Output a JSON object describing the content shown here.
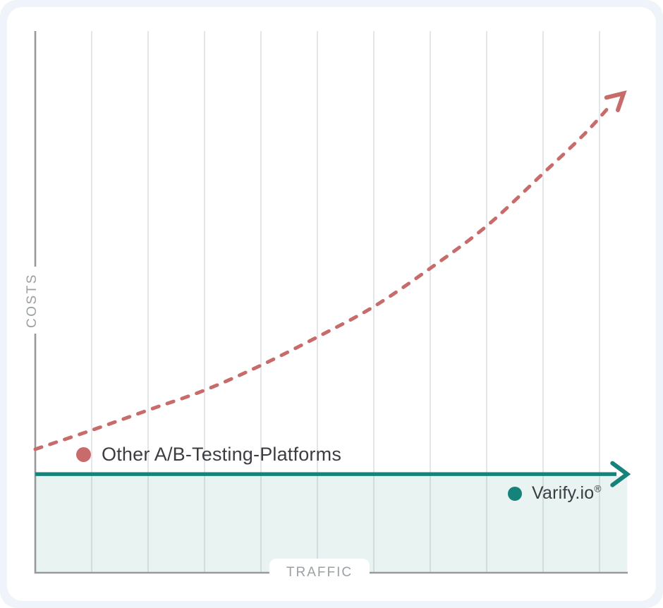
{
  "colors": {
    "background_frame": "#EEF4F9",
    "card": "#FFFFFF",
    "other_platforms_red": "#C86B6B",
    "varify_teal": "#15837A",
    "varify_area_fill": "rgba(21,131,122,0.095)",
    "gridline": "#E3E7EA",
    "axis": "#97999B",
    "axis_label_gray": "#9BA0A3",
    "legend_text": "#3B3D42"
  },
  "chart_data": {
    "type": "line",
    "xlabel": "TRAFFIC",
    "ylabel": "COSTS",
    "axes_quantitative": false,
    "gridlines": {
      "vertical_count": 10,
      "horizontal_count": 0,
      "grid_on": true
    },
    "legend_position": "inline-annotations",
    "series": [
      {
        "name": "Other A/B-Testing-Platforms",
        "style": "dashed",
        "color": "#C86B6B",
        "trend": "costs rise exponentially as traffic grows, ending in an upward arrow",
        "points_norm": [
          [
            0.0,
            0.228
          ],
          [
            0.095,
            0.263
          ],
          [
            0.19,
            0.3
          ],
          [
            0.286,
            0.337
          ],
          [
            0.381,
            0.383
          ],
          [
            0.476,
            0.435
          ],
          [
            0.571,
            0.491
          ],
          [
            0.668,
            0.563
          ],
          [
            0.763,
            0.641
          ],
          [
            0.858,
            0.738
          ],
          [
            0.927,
            0.81
          ],
          [
            0.97,
            0.862
          ]
        ],
        "arrow_tip_norm": [
          0.993,
          0.885
        ]
      },
      {
        "name": "Varify.io",
        "reg_mark": "®",
        "style": "solid",
        "color": "#15837A",
        "trend": "costs stay flat regardless of traffic, ending in a rightward arrow",
        "points_norm": [
          [
            0.0,
            0.182
          ],
          [
            0.981,
            0.182
          ]
        ],
        "arrow_tip_norm": [
          0.999,
          0.182
        ],
        "area_fill_below": true
      }
    ],
    "legend": [
      {
        "label": "Other A/B-Testing-Platforms",
        "color": "#C86B6B"
      },
      {
        "label": "Varify.io®",
        "color": "#15837A"
      }
    ]
  }
}
